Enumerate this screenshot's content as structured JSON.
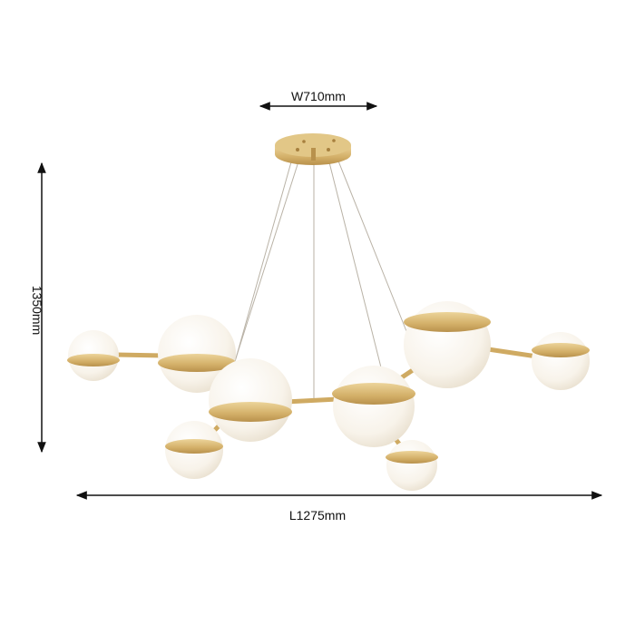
{
  "dimensions": {
    "width_label": "W710mm",
    "height_label": "1350mm",
    "length_label": "L1275mm"
  },
  "colors": {
    "gold": "#d6b46e",
    "globe": "#fbf8f1",
    "line": "#111111"
  }
}
